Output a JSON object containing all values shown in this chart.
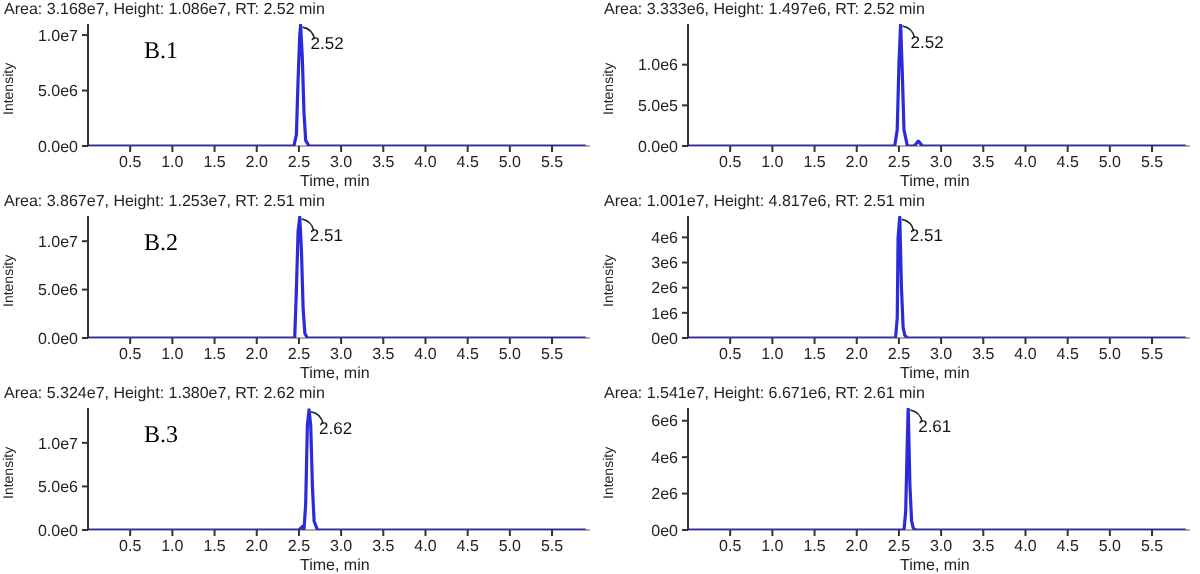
{
  "chart_data": [
    {
      "type": "line",
      "title": "Area: 3.168e7, Height: 1.086e7, RT: 2.52 min",
      "xlabel": "Time, min",
      "ylabel": "Intensity",
      "annotations": [
        "B.1",
        {
          "text": "2.52",
          "x": 2.52,
          "y": 10900000.0
        }
      ],
      "xlim": [
        0,
        5.95
      ],
      "ylim": [
        0,
        11000000.0
      ],
      "xticks": [
        0.5,
        {
          "value": 1,
          "label": "1.0"
        },
        1.5,
        {
          "value": 2,
          "label": "2.0"
        },
        2.5,
        {
          "value": 3,
          "label": "3.0"
        },
        3.5,
        {
          "value": 4,
          "label": "4.0"
        },
        4.5,
        {
          "value": 5,
          "label": "5.0"
        },
        5.5
      ],
      "yticks": [
        {
          "value": 0,
          "label": "0.0e0"
        },
        {
          "value": 5000000,
          "label": "5.0e6"
        },
        {
          "value": 10000000,
          "label": "1.0e7"
        }
      ],
      "grid": false,
      "marker": "none",
      "line_style": "solid",
      "series": [
        {
          "color": "#2b2bdc",
          "x": [
            0,
            2.44,
            2.47,
            2.49,
            2.51,
            2.52,
            2.54,
            2.56,
            2.58,
            2.62,
            5.9
          ],
          "values": [
            0,
            0,
            1000000,
            6000000,
            10000000,
            10900000,
            8000000,
            3000000,
            500000,
            0,
            0
          ]
        }
      ]
    },
    {
      "type": "line",
      "title": "Area: 3.333e6, Height: 1.497e6, RT: 2.52 min",
      "xlabel": "Time, min",
      "ylabel": "Intensity",
      "annotations": [
        {
          "text": "2.52",
          "x": 2.52,
          "y": 1500000.0
        }
      ],
      "xlim": [
        0,
        5.95
      ],
      "ylim": [
        0,
        1500000.0
      ],
      "xticks": [
        0.5,
        {
          "value": 1,
          "label": "1.0"
        },
        1.5,
        {
          "value": 2,
          "label": "2.0"
        },
        2.5,
        {
          "value": 3,
          "label": "3.0"
        },
        3.5,
        {
          "value": 4,
          "label": "4.0"
        },
        4.5,
        {
          "value": 5,
          "label": "5.0"
        },
        5.5
      ],
      "yticks": [
        {
          "value": 0,
          "label": "0.0e0"
        },
        {
          "value": 500000,
          "label": "5.0e5"
        },
        {
          "value": 1000000,
          "label": "1.0e6"
        }
      ],
      "grid": false,
      "marker": "none",
      "line_style": "solid",
      "series": [
        {
          "color": "#2b2bdc",
          "x": [
            0,
            2.45,
            2.48,
            2.5,
            2.52,
            2.54,
            2.56,
            2.6,
            2.68,
            2.73,
            2.78,
            5.9
          ],
          "values": [
            0,
            0,
            200000,
            1000000,
            1500000,
            900000,
            200000,
            0,
            0,
            60000,
            0,
            0
          ]
        }
      ]
    },
    {
      "type": "line",
      "title": "Area: 3.867e7, Height: 1.253e7, RT: 2.51 min",
      "xlabel": "Time, min",
      "ylabel": "Intensity",
      "annotations": [
        "B.2",
        {
          "text": "2.51",
          "x": 2.51,
          "y": 12500000.0
        }
      ],
      "xlim": [
        0,
        5.95
      ],
      "ylim": [
        0,
        12600000.0
      ],
      "xticks": [
        0.5,
        {
          "value": 1,
          "label": "1.0"
        },
        1.5,
        {
          "value": 2,
          "label": "2.0"
        },
        2.5,
        {
          "value": 3,
          "label": "3.0"
        },
        3.5,
        {
          "value": 4,
          "label": "4.0"
        },
        4.5,
        {
          "value": 5,
          "label": "5.0"
        },
        5.5
      ],
      "yticks": [
        {
          "value": 0,
          "label": "0.0e0"
        },
        {
          "value": 5000000,
          "label": "5.0e6"
        },
        {
          "value": 10000000,
          "label": "1.0e7"
        }
      ],
      "grid": false,
      "marker": "none",
      "line_style": "solid",
      "series": [
        {
          "color": "#2b2bdc",
          "x": [
            0,
            2.45,
            2.47,
            2.49,
            2.51,
            2.53,
            2.55,
            2.57,
            2.6,
            5.9
          ],
          "values": [
            0,
            0,
            5000000,
            11000000,
            12500000,
            9000000,
            3000000,
            500000,
            0,
            0
          ]
        }
      ]
    },
    {
      "type": "line",
      "title": "Area: 1.001e7, Height: 4.817e6, RT: 2.51 min",
      "xlabel": "Time, min",
      "ylabel": "Intensity",
      "annotations": [
        {
          "text": "2.51",
          "x": 2.51,
          "y": 4800000.0
        }
      ],
      "xlim": [
        0,
        5.95
      ],
      "ylim": [
        0,
        4850000.0
      ],
      "xticks": [
        0.5,
        {
          "value": 1,
          "label": "1.0"
        },
        1.5,
        {
          "value": 2,
          "label": "2.0"
        },
        2.5,
        {
          "value": 3,
          "label": "3.0"
        },
        3.5,
        {
          "value": 4,
          "label": "4.0"
        },
        4.5,
        {
          "value": 5,
          "label": "5.0"
        },
        5.5
      ],
      "yticks": [
        {
          "value": 0,
          "label": "0e0"
        },
        {
          "value": 1000000,
          "label": "1e6"
        },
        {
          "value": 2000000,
          "label": "2e6"
        },
        {
          "value": 3000000,
          "label": "3e6"
        },
        {
          "value": 4000000,
          "label": "4e6"
        }
      ],
      "grid": false,
      "marker": "none",
      "line_style": "solid",
      "series": [
        {
          "color": "#2b2bdc",
          "x": [
            0,
            2.46,
            2.48,
            2.49,
            2.51,
            2.53,
            2.55,
            2.57,
            2.6,
            5.9
          ],
          "values": [
            0,
            0,
            800000,
            4000000,
            4800000,
            2000000,
            400000,
            100000,
            0,
            0
          ]
        }
      ]
    },
    {
      "type": "line",
      "title": "Area: 5.324e7, Height: 1.380e7, RT: 2.62 min",
      "xlabel": "Time, min",
      "ylabel": "Intensity",
      "annotations": [
        "B.3",
        {
          "text": "2.62",
          "x": 2.62,
          "y": 13800000.0
        }
      ],
      "xlim": [
        0,
        5.95
      ],
      "ylim": [
        0,
        14000000.0
      ],
      "xticks": [
        0.5,
        {
          "value": 1,
          "label": "1.0"
        },
        1.5,
        {
          "value": 2,
          "label": "2.0"
        },
        2.5,
        {
          "value": 3,
          "label": "3.0"
        },
        3.5,
        {
          "value": 4,
          "label": "4.0"
        },
        4.5,
        {
          "value": 5,
          "label": "5.0"
        },
        5.5
      ],
      "yticks": [
        {
          "value": 0,
          "label": "0.0e0"
        },
        {
          "value": 5000000,
          "label": "5.0e6"
        },
        {
          "value": 10000000,
          "label": "1.0e7"
        }
      ],
      "grid": false,
      "marker": "none",
      "line_style": "solid",
      "series": [
        {
          "color": "#2b2bdc",
          "x": [
            0,
            2.5,
            2.54,
            2.56,
            2.58,
            2.6,
            2.62,
            2.64,
            2.66,
            2.68,
            2.72,
            5.9
          ],
          "values": [
            0,
            0,
            400000,
            0,
            3000000,
            12000000,
            13800000,
            12000000,
            5000000,
            1000000,
            0,
            0
          ]
        }
      ]
    },
    {
      "type": "line",
      "title": "Area: 1.541e7, Height: 6.671e6, RT: 2.61 min",
      "xlabel": "Time, min",
      "ylabel": "Intensity",
      "annotations": [
        {
          "text": "2.61",
          "x": 2.61,
          "y": 6700000.0
        }
      ],
      "xlim": [
        0,
        5.95
      ],
      "ylim": [
        0,
        6700000.0
      ],
      "xticks": [
        0.5,
        {
          "value": 1,
          "label": "1.0"
        },
        1.5,
        {
          "value": 2,
          "label": "2.0"
        },
        2.5,
        {
          "value": 3,
          "label": "3.0"
        },
        3.5,
        {
          "value": 4,
          "label": "4.0"
        },
        4.5,
        {
          "value": 5,
          "label": "5.0"
        },
        5.5
      ],
      "yticks": [
        {
          "value": 0,
          "label": "0e0"
        },
        {
          "value": 2000000,
          "label": "2e6"
        },
        {
          "value": 4000000,
          "label": "4e6"
        },
        {
          "value": 6000000,
          "label": "6e6"
        }
      ],
      "grid": false,
      "marker": "none",
      "line_style": "solid",
      "series": [
        {
          "color": "#2b2bdc",
          "x": [
            0,
            2.56,
            2.58,
            2.6,
            2.61,
            2.63,
            2.65,
            2.67,
            2.7,
            5.9
          ],
          "values": [
            0,
            0,
            1000000,
            5000000,
            6700000,
            2500000,
            500000,
            100000,
            0,
            0
          ]
        }
      ]
    }
  ]
}
